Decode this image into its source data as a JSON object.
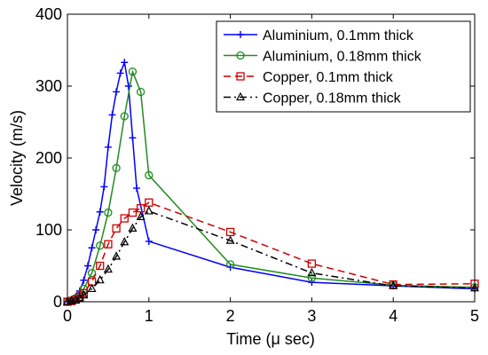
{
  "chart_data": {
    "type": "line",
    "title": "",
    "xlabel": "Time (μ sec)",
    "ylabel": "Velocity (m/s)",
    "xlim": [
      0,
      5
    ],
    "ylim": [
      0,
      400
    ],
    "x_ticks": [
      0,
      1,
      2,
      3,
      4,
      5
    ],
    "y_ticks": [
      0,
      100,
      200,
      300,
      400
    ],
    "grid": false,
    "legend_position": "top-right",
    "series": [
      {
        "name": "Aluminium, 0.1mm thick",
        "color": "#0000ff",
        "marker": "plus",
        "dash": "solid",
        "points": [
          [
            0,
            0
          ],
          [
            0.05,
            2
          ],
          [
            0.1,
            6
          ],
          [
            0.15,
            15
          ],
          [
            0.2,
            30
          ],
          [
            0.25,
            50
          ],
          [
            0.3,
            75
          ],
          [
            0.35,
            100
          ],
          [
            0.4,
            125
          ],
          [
            0.45,
            160
          ],
          [
            0.5,
            215
          ],
          [
            0.55,
            260
          ],
          [
            0.6,
            292
          ],
          [
            0.65,
            318
          ],
          [
            0.7,
            333
          ],
          [
            0.75,
            300
          ],
          [
            0.8,
            228
          ],
          [
            0.85,
            158
          ],
          [
            1,
            84
          ],
          [
            2,
            48
          ],
          [
            3,
            27
          ],
          [
            4,
            22
          ],
          [
            5,
            18
          ]
        ]
      },
      {
        "name": "Aluminium, 0.18mm thick",
        "color": "#228b22",
        "marker": "circle",
        "dash": "solid",
        "points": [
          [
            0,
            0
          ],
          [
            0.05,
            2
          ],
          [
            0.1,
            5
          ],
          [
            0.15,
            10
          ],
          [
            0.2,
            18
          ],
          [
            0.3,
            40
          ],
          [
            0.4,
            78
          ],
          [
            0.5,
            124
          ],
          [
            0.6,
            186
          ],
          [
            0.7,
            258
          ],
          [
            0.8,
            320
          ],
          [
            0.9,
            292
          ],
          [
            1,
            176
          ],
          [
            2,
            52
          ],
          [
            3,
            33
          ],
          [
            4,
            23
          ],
          [
            5,
            20
          ]
        ]
      },
      {
        "name": "Copper, 0.1mm thick",
        "color": "#cc0000",
        "marker": "square",
        "dash": "dashed",
        "points": [
          [
            0,
            0
          ],
          [
            0.05,
            1
          ],
          [
            0.1,
            3
          ],
          [
            0.15,
            7
          ],
          [
            0.2,
            12
          ],
          [
            0.3,
            28
          ],
          [
            0.4,
            50
          ],
          [
            0.5,
            80
          ],
          [
            0.6,
            102
          ],
          [
            0.7,
            116
          ],
          [
            0.8,
            124
          ],
          [
            0.9,
            130
          ],
          [
            1,
            138
          ],
          [
            2,
            97
          ],
          [
            3,
            53
          ],
          [
            4,
            24
          ],
          [
            5,
            25
          ]
        ]
      },
      {
        "name": "Copper, 0.18mm thick",
        "color": "#000000",
        "marker": "triangle",
        "dash": "dashdot",
        "points": [
          [
            0,
            0
          ],
          [
            0.05,
            1
          ],
          [
            0.1,
            2
          ],
          [
            0.15,
            5
          ],
          [
            0.2,
            9
          ],
          [
            0.3,
            18
          ],
          [
            0.4,
            30
          ],
          [
            0.5,
            45
          ],
          [
            0.6,
            63
          ],
          [
            0.7,
            83
          ],
          [
            0.8,
            102
          ],
          [
            0.9,
            118
          ],
          [
            1,
            126
          ],
          [
            2,
            85
          ],
          [
            3,
            40
          ],
          [
            4,
            22
          ],
          [
            5,
            19
          ]
        ]
      }
    ]
  }
}
